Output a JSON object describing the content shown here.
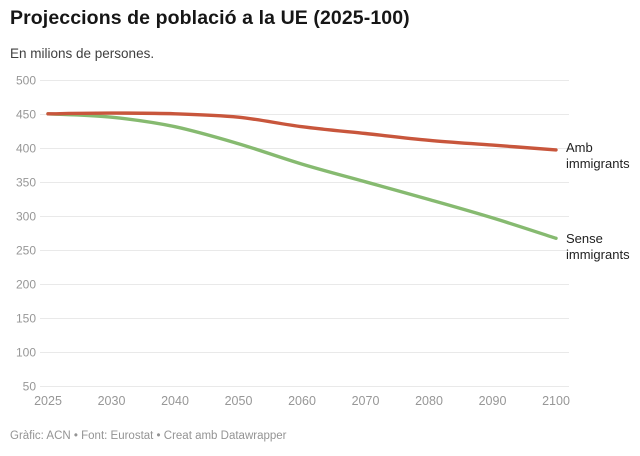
{
  "header": {
    "title": "Projeccions de població a la UE (2025-100)",
    "subtitle": "En milions de persones."
  },
  "chart_data": {
    "type": "line",
    "title": "Projeccions de població a la UE (2025-100)",
    "subtitle_units": "En milions de persones.",
    "categories": [
      "2025",
      "2030",
      "2040",
      "2050",
      "2060",
      "2070",
      "2080",
      "2090",
      "2100"
    ],
    "series": [
      {
        "name": "Amb immigrants",
        "color": "#c8563c",
        "values": [
          451,
          452,
          451,
          446,
          432,
          422,
          412,
          405,
          398
        ]
      },
      {
        "name": "Sense immigrants",
        "color": "#86ba70",
        "values": [
          451,
          446,
          432,
          407,
          377,
          351,
          325,
          298,
          268
        ]
      }
    ],
    "ylim": [
      50,
      500
    ],
    "yticks": [
      500,
      450,
      400,
      350,
      300,
      250,
      200,
      150,
      100,
      50
    ],
    "grid": true,
    "legend_position": "labels at right end of each line",
    "xlabel": "",
    "ylabel": ""
  },
  "footer": {
    "credit": "Gràfic: ACN • Font: Eurostat • Creat amb Datawrapper"
  }
}
